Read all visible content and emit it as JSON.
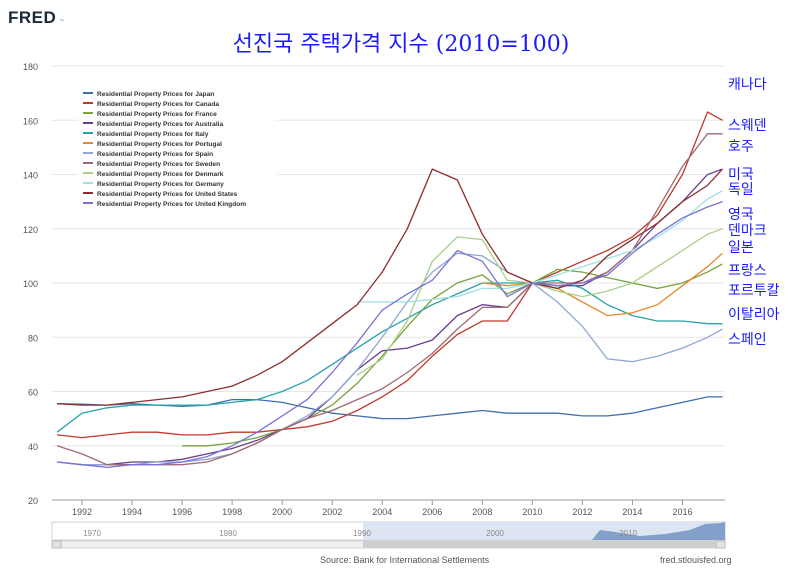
{
  "brand": {
    "name": "FRED"
  },
  "chart_data": {
    "type": "line",
    "title": "선진국 주택가격 지수 (2010=100)",
    "xlabel": "",
    "ylabel": "",
    "xlim": [
      1990.8,
      2017.7
    ],
    "ylim": [
      20,
      180
    ],
    "yticks": [
      20,
      40,
      60,
      80,
      100,
      120,
      140,
      160,
      180
    ],
    "xticks": [
      1992,
      1994,
      1996,
      1998,
      2000,
      2002,
      2004,
      2006,
      2008,
      2010,
      2012,
      2014,
      2016
    ],
    "grid": true,
    "legend_position": "top-left",
    "series": [
      {
        "name": "Residential Property Prices for Japan",
        "label": "일본",
        "color": "#3d6fb0",
        "points": [
          [
            1991,
            55.5
          ],
          [
            1992,
            55.3
          ],
          [
            1993,
            55
          ],
          [
            1994,
            55.5
          ],
          [
            1995,
            55
          ],
          [
            1996,
            54.5
          ],
          [
            1997,
            55
          ],
          [
            1998,
            57
          ],
          [
            1999,
            57
          ],
          [
            2000,
            56
          ],
          [
            2001,
            54
          ],
          [
            2002,
            52
          ],
          [
            2003,
            51
          ],
          [
            2004,
            50
          ],
          [
            2005,
            50
          ],
          [
            2006,
            51
          ],
          [
            2007,
            52
          ],
          [
            2008,
            53
          ],
          [
            2009,
            52
          ],
          [
            2010,
            52
          ],
          [
            2011,
            52
          ],
          [
            2012,
            51
          ],
          [
            2013,
            51
          ],
          [
            2014,
            52
          ],
          [
            2015,
            54
          ],
          [
            2016,
            56
          ],
          [
            2017,
            58
          ],
          [
            2017.6,
            58
          ]
        ]
      },
      {
        "name": "Residential Property Prices for Canada",
        "label": "캐나다",
        "color": "#c0392b",
        "points": [
          [
            1991,
            44
          ],
          [
            1992,
            43
          ],
          [
            1993,
            44
          ],
          [
            1994,
            45
          ],
          [
            1995,
            45
          ],
          [
            1996,
            44
          ],
          [
            1997,
            44
          ],
          [
            1998,
            45
          ],
          [
            1999,
            45
          ],
          [
            2000,
            46
          ],
          [
            2001,
            47
          ],
          [
            2002,
            49
          ],
          [
            2003,
            53
          ],
          [
            2004,
            58
          ],
          [
            2005,
            64
          ],
          [
            2006,
            73
          ],
          [
            2007,
            81
          ],
          [
            2008,
            86
          ],
          [
            2009,
            86
          ],
          [
            2010,
            100
          ],
          [
            2011,
            104
          ],
          [
            2012,
            108
          ],
          [
            2013,
            112
          ],
          [
            2014,
            117
          ],
          [
            2015,
            125
          ],
          [
            2016,
            140
          ],
          [
            2017,
            163
          ],
          [
            2017.6,
            160
          ]
        ]
      },
      {
        "name": "Residential Property Prices for France",
        "label": "프랑스",
        "color": "#7aa33b",
        "points": [
          [
            1996,
            40
          ],
          [
            1997,
            40
          ],
          [
            1998,
            41
          ],
          [
            1999,
            43
          ],
          [
            2000,
            46
          ],
          [
            2001,
            50
          ],
          [
            2002,
            55
          ],
          [
            2003,
            63
          ],
          [
            2004,
            73
          ],
          [
            2005,
            84
          ],
          [
            2006,
            94
          ],
          [
            2007,
            100
          ],
          [
            2008,
            103
          ],
          [
            2009,
            96
          ],
          [
            2010,
            100
          ],
          [
            2011,
            105
          ],
          [
            2012,
            104
          ],
          [
            2013,
            102
          ],
          [
            2014,
            100
          ],
          [
            2015,
            98
          ],
          [
            2016,
            100
          ],
          [
            2017,
            104
          ],
          [
            2017.6,
            107
          ]
        ]
      },
      {
        "name": "Residential Property Prices for Australia",
        "label": "호주",
        "color": "#6a3f8f",
        "points": [
          [
            1991,
            34
          ],
          [
            1992,
            33
          ],
          [
            1993,
            33
          ],
          [
            1994,
            34
          ],
          [
            1995,
            34
          ],
          [
            1996,
            35
          ],
          [
            1997,
            37
          ],
          [
            1998,
            39
          ],
          [
            1999,
            42
          ],
          [
            2000,
            46
          ],
          [
            2001,
            50
          ],
          [
            2002,
            58
          ],
          [
            2003,
            68
          ],
          [
            2004,
            75
          ],
          [
            2005,
            76
          ],
          [
            2006,
            79
          ],
          [
            2007,
            88
          ],
          [
            2008,
            92
          ],
          [
            2009,
            91
          ],
          [
            2010,
            100
          ],
          [
            2011,
            99
          ],
          [
            2012,
            99
          ],
          [
            2013,
            104
          ],
          [
            2014,
            112
          ],
          [
            2015,
            122
          ],
          [
            2016,
            130
          ],
          [
            2017,
            140
          ],
          [
            2017.6,
            142
          ]
        ]
      },
      {
        "name": "Residential Property Prices for Italy",
        "label": "이탈리아",
        "color": "#2aa2a8",
        "points": [
          [
            1991,
            45
          ],
          [
            1992,
            52
          ],
          [
            1993,
            54
          ],
          [
            1994,
            55
          ],
          [
            1995,
            55
          ],
          [
            1996,
            55
          ],
          [
            1997,
            55
          ],
          [
            1998,
            56
          ],
          [
            1999,
            57
          ],
          [
            2000,
            60
          ],
          [
            2001,
            64
          ],
          [
            2002,
            70
          ],
          [
            2003,
            76
          ],
          [
            2004,
            82
          ],
          [
            2005,
            87
          ],
          [
            2006,
            92
          ],
          [
            2007,
            96
          ],
          [
            2008,
            100
          ],
          [
            2009,
            100
          ],
          [
            2010,
            100
          ],
          [
            2011,
            101
          ],
          [
            2012,
            98
          ],
          [
            2013,
            92
          ],
          [
            2014,
            88
          ],
          [
            2015,
            86
          ],
          [
            2016,
            86
          ],
          [
            2017,
            85
          ],
          [
            2017.6,
            85
          ]
        ]
      },
      {
        "name": "Residential Property Prices for Portugal",
        "label": "포르투칼",
        "color": "#e58a2e",
        "points": [
          [
            2008,
            100
          ],
          [
            2009,
            99
          ],
          [
            2010,
            100
          ],
          [
            2011,
            98
          ],
          [
            2012,
            93
          ],
          [
            2013,
            88
          ],
          [
            2014,
            89
          ],
          [
            2015,
            92
          ],
          [
            2016,
            99
          ],
          [
            2017,
            106
          ],
          [
            2017.6,
            111
          ]
        ]
      },
      {
        "name": "Residential Property Prices for Spain",
        "label": "스페인",
        "color": "#8fa7d6",
        "points": [
          [
            1991,
            34
          ],
          [
            1992,
            33
          ],
          [
            1993,
            33
          ],
          [
            1994,
            33
          ],
          [
            1995,
            34
          ],
          [
            1996,
            34
          ],
          [
            1997,
            35
          ],
          [
            1998,
            37
          ],
          [
            1999,
            41
          ],
          [
            2000,
            46
          ],
          [
            2001,
            51
          ],
          [
            2002,
            58
          ],
          [
            2003,
            68
          ],
          [
            2004,
            80
          ],
          [
            2005,
            93
          ],
          [
            2006,
            104
          ],
          [
            2007,
            111
          ],
          [
            2008,
            110
          ],
          [
            2009,
            104
          ],
          [
            2010,
            100
          ],
          [
            2011,
            93
          ],
          [
            2012,
            84
          ],
          [
            2013,
            72
          ],
          [
            2014,
            71
          ],
          [
            2015,
            73
          ],
          [
            2016,
            76
          ],
          [
            2017,
            80
          ],
          [
            2017.6,
            83
          ]
        ]
      },
      {
        "name": "Residential Property Prices for Sweden",
        "label": "스웨덴",
        "color": "#a06a70",
        "points": [
          [
            1991,
            40
          ],
          [
            1992,
            37
          ],
          [
            1993,
            33
          ],
          [
            1994,
            33
          ],
          [
            1995,
            33
          ],
          [
            1996,
            33
          ],
          [
            1997,
            34
          ],
          [
            1998,
            37
          ],
          [
            1999,
            41
          ],
          [
            2000,
            46
          ],
          [
            2001,
            50
          ],
          [
            2002,
            53
          ],
          [
            2003,
            57
          ],
          [
            2004,
            61
          ],
          [
            2005,
            67
          ],
          [
            2006,
            74
          ],
          [
            2007,
            83
          ],
          [
            2008,
            91
          ],
          [
            2009,
            91
          ],
          [
            2010,
            100
          ],
          [
            2011,
            100
          ],
          [
            2012,
            100
          ],
          [
            2013,
            104
          ],
          [
            2014,
            112
          ],
          [
            2015,
            127
          ],
          [
            2016,
            143
          ],
          [
            2017,
            155
          ],
          [
            2017.6,
            155
          ]
        ]
      },
      {
        "name": "Residential Property Prices for Denmark",
        "label": "덴마크",
        "color": "#a9cf86",
        "points": [
          [
            2003,
            66
          ],
          [
            2004,
            72
          ],
          [
            2005,
            86
          ],
          [
            2006,
            108
          ],
          [
            2007,
            117
          ],
          [
            2008,
            116
          ],
          [
            2009,
            101
          ],
          [
            2010,
            100
          ],
          [
            2011,
            97
          ],
          [
            2012,
            95
          ],
          [
            2013,
            97
          ],
          [
            2014,
            100
          ],
          [
            2015,
            106
          ],
          [
            2016,
            112
          ],
          [
            2017,
            118
          ],
          [
            2017.6,
            120
          ]
        ]
      },
      {
        "name": "Residential Property Prices for Germany",
        "label": "독일",
        "color": "#9fdfe0",
        "points": [
          [
            2003,
            93
          ],
          [
            2004,
            93
          ],
          [
            2005,
            93
          ],
          [
            2006,
            94
          ],
          [
            2007,
            95
          ],
          [
            2008,
            98
          ],
          [
            2009,
            98
          ],
          [
            2010,
            100
          ],
          [
            2011,
            103
          ],
          [
            2012,
            106
          ],
          [
            2013,
            109
          ],
          [
            2014,
            112
          ],
          [
            2015,
            117
          ],
          [
            2016,
            123
          ],
          [
            2017,
            131
          ],
          [
            2017.6,
            134
          ]
        ]
      },
      {
        "name": "Residential Property Prices for United States",
        "label": "미국",
        "color": "#8b2e2e",
        "points": [
          [
            1991,
            55.5
          ],
          [
            1992,
            55
          ],
          [
            1993,
            55
          ],
          [
            1994,
            56
          ],
          [
            1995,
            57
          ],
          [
            1996,
            58
          ],
          [
            1997,
            60
          ],
          [
            1998,
            62
          ],
          [
            1999,
            66
          ],
          [
            2000,
            71
          ],
          [
            2001,
            78
          ],
          [
            2002,
            85
          ],
          [
            2003,
            92
          ],
          [
            2004,
            104
          ],
          [
            2005,
            120
          ],
          [
            2006,
            142
          ],
          [
            2007,
            138
          ],
          [
            2008,
            118
          ],
          [
            2009,
            104
          ],
          [
            2010,
            100
          ],
          [
            2011,
            98
          ],
          [
            2012,
            101
          ],
          [
            2013,
            110
          ],
          [
            2014,
            116
          ],
          [
            2015,
            122
          ],
          [
            2016,
            130
          ],
          [
            2017,
            136
          ],
          [
            2017.6,
            142
          ]
        ]
      },
      {
        "name": "Residential Property Prices for United Kingdom",
        "label": "영국",
        "color": "#7a72d6",
        "points": [
          [
            1991,
            34
          ],
          [
            1992,
            33
          ],
          [
            1993,
            32
          ],
          [
            1994,
            33
          ],
          [
            1995,
            33
          ],
          [
            1996,
            34
          ],
          [
            1997,
            36
          ],
          [
            1998,
            40
          ],
          [
            1999,
            45
          ],
          [
            2000,
            51
          ],
          [
            2001,
            57
          ],
          [
            2002,
            67
          ],
          [
            2003,
            78
          ],
          [
            2004,
            90
          ],
          [
            2005,
            96
          ],
          [
            2006,
            101
          ],
          [
            2007,
            112
          ],
          [
            2008,
            108
          ],
          [
            2009,
            95
          ],
          [
            2010,
            100
          ],
          [
            2011,
            99
          ],
          [
            2012,
            100
          ],
          [
            2013,
            103
          ],
          [
            2014,
            111
          ],
          [
            2015,
            118
          ],
          [
            2016,
            124
          ],
          [
            2017,
            128
          ],
          [
            2017.6,
            130
          ]
        ]
      }
    ]
  },
  "navigator": {
    "ticks": [
      "1970",
      "1980",
      "1990",
      "2000",
      "2010"
    ]
  },
  "footer": {
    "source": "Source: Bank for International Settlements",
    "url": "fred.stlouisfed.org"
  }
}
